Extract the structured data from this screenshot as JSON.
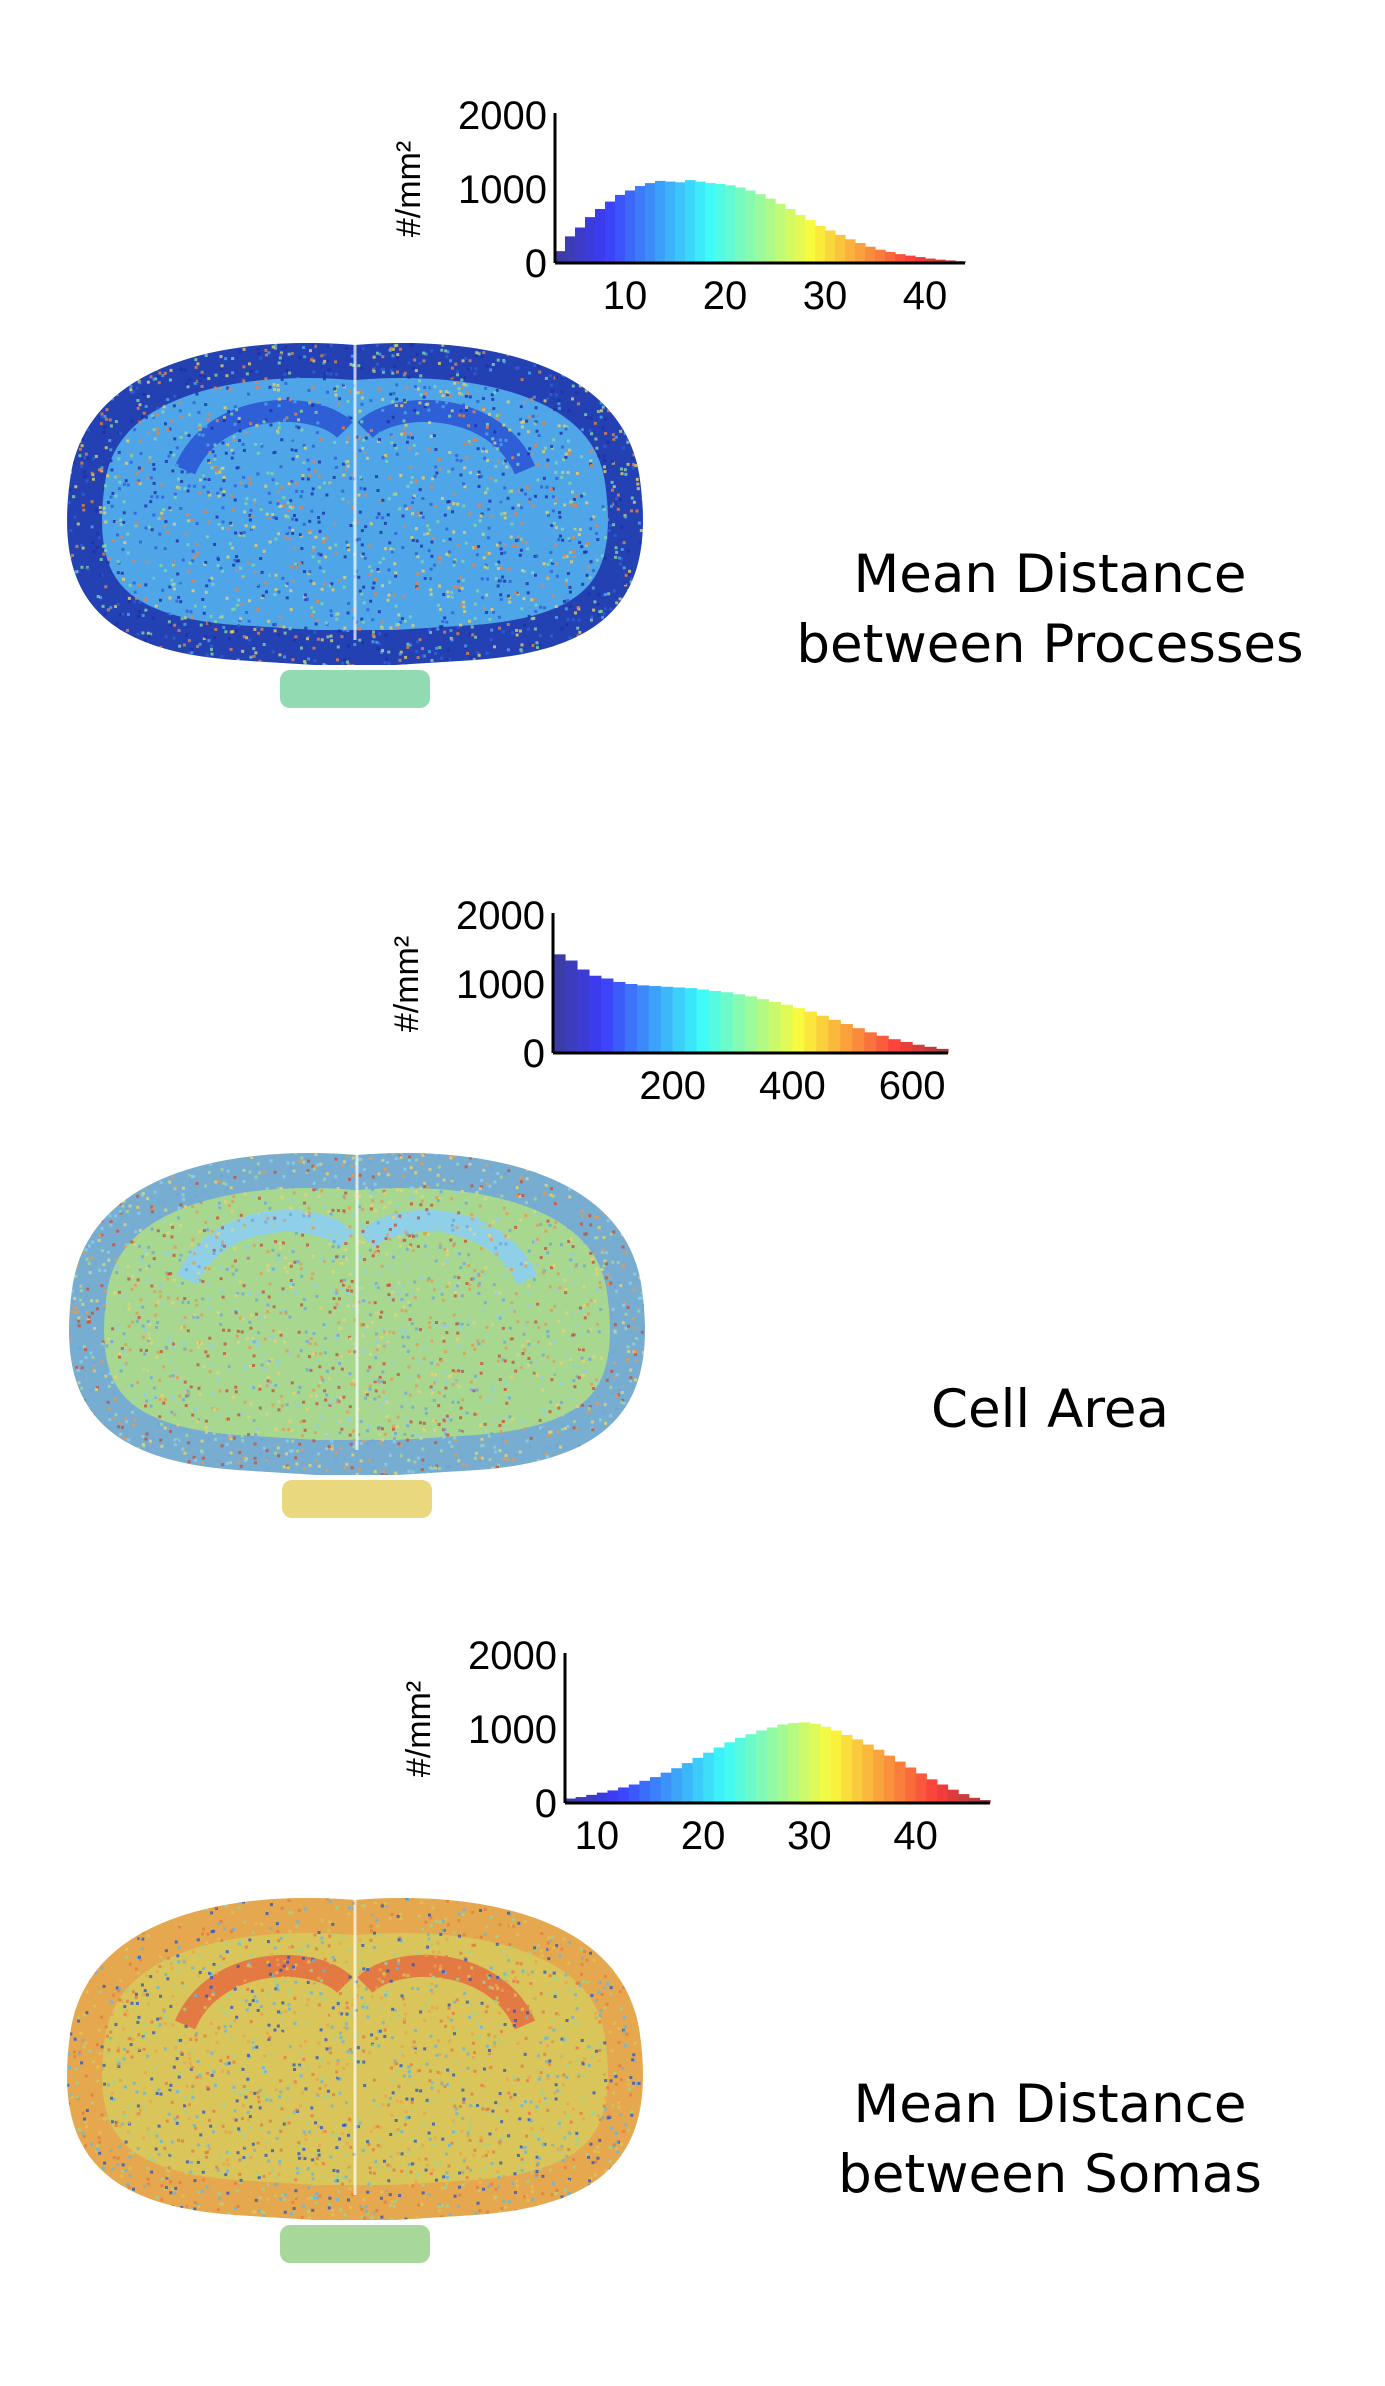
{
  "chart_data": [
    {
      "type": "bar",
      "caption": [
        "Mean Distance",
        "between Processes"
      ],
      "ylabel": "#/mm²",
      "ylim": [
        0,
        2000
      ],
      "yticks": [
        "0",
        "1000",
        "2000"
      ],
      "xlim": [
        3,
        44
      ],
      "xticks": [
        "10",
        "20",
        "30",
        "40"
      ],
      "xtick_values": [
        10,
        20,
        30,
        40
      ],
      "colormap": "jet",
      "grid": false,
      "bins": {
        "x": [
          3,
          4,
          5,
          6,
          7,
          8,
          9,
          10,
          11,
          12,
          13,
          14,
          15,
          16,
          17,
          18,
          19,
          20,
          21,
          22,
          23,
          24,
          25,
          26,
          27,
          28,
          29,
          30,
          31,
          32,
          33,
          34,
          35,
          36,
          37,
          38,
          39,
          40,
          41,
          42,
          43
        ],
        "values": [
          160,
          360,
          480,
          620,
          730,
          830,
          920,
          980,
          1040,
          1080,
          1110,
          1100,
          1090,
          1120,
          1100,
          1080,
          1070,
          1050,
          1020,
          980,
          930,
          870,
          800,
          730,
          650,
          580,
          500,
          440,
          380,
          320,
          270,
          220,
          180,
          150,
          120,
          100,
          80,
          60,
          45,
          35,
          25
        ]
      },
      "map_palette": [
        "#1c2fa8",
        "#2e5fd6",
        "#4ea6e8",
        "#86d6a8",
        "#e9cf66",
        "#e5834a"
      ]
    },
    {
      "type": "bar",
      "caption": [
        "Cell Area"
      ],
      "ylabel": "#/mm²",
      "ylim": [
        0,
        2000
      ],
      "yticks": [
        "0",
        "1000",
        "2000"
      ],
      "xlim": [
        0,
        660
      ],
      "xticks": [
        "200",
        "400",
        "600"
      ],
      "xtick_values": [
        200,
        400,
        600
      ],
      "colormap": "jet",
      "grid": false,
      "bins": {
        "x": [
          0,
          20,
          40,
          60,
          80,
          100,
          120,
          140,
          160,
          180,
          200,
          220,
          240,
          260,
          280,
          300,
          320,
          340,
          360,
          380,
          400,
          420,
          440,
          460,
          480,
          500,
          520,
          540,
          560,
          580,
          600,
          620,
          640
        ],
        "values": [
          1430,
          1340,
          1210,
          1120,
          1080,
          1030,
          1000,
          980,
          970,
          960,
          950,
          940,
          920,
          900,
          880,
          850,
          820,
          780,
          740,
          700,
          650,
          600,
          540,
          480,
          420,
          360,
          300,
          250,
          200,
          160,
          120,
          90,
          60
        ]
      },
      "map_palette": [
        "#6fa6dc",
        "#8fd0e8",
        "#a8d890",
        "#e8d470",
        "#e39a52",
        "#c8503c"
      ]
    },
    {
      "type": "bar",
      "caption": [
        "Mean Distance",
        "between Somas"
      ],
      "ylabel": "#/mm²",
      "ylim": [
        0,
        2000
      ],
      "yticks": [
        "0",
        "1000",
        "2000"
      ],
      "xlim": [
        7,
        47
      ],
      "xticks": [
        "10",
        "20",
        "30",
        "40"
      ],
      "xtick_values": [
        10,
        20,
        30,
        40
      ],
      "colormap": "jet",
      "grid": false,
      "bins": {
        "x": [
          7,
          8,
          9,
          10,
          11,
          12,
          13,
          14,
          15,
          16,
          17,
          18,
          19,
          20,
          21,
          22,
          23,
          24,
          25,
          26,
          27,
          28,
          29,
          30,
          31,
          32,
          33,
          34,
          35,
          36,
          37,
          38,
          39,
          40,
          41,
          42,
          43,
          44,
          45,
          46
        ],
        "values": [
          60,
          80,
          110,
          140,
          170,
          210,
          250,
          300,
          350,
          410,
          470,
          540,
          610,
          680,
          750,
          820,
          880,
          930,
          980,
          1020,
          1060,
          1080,
          1090,
          1070,
          1030,
          980,
          920,
          860,
          790,
          720,
          640,
          560,
          480,
          400,
          320,
          250,
          180,
          120,
          70,
          40
        ]
      },
      "map_palette": [
        "#e8a24c",
        "#e37a44",
        "#d9c55a",
        "#9fd48e",
        "#64b6e0",
        "#2c57c4"
      ]
    }
  ]
}
